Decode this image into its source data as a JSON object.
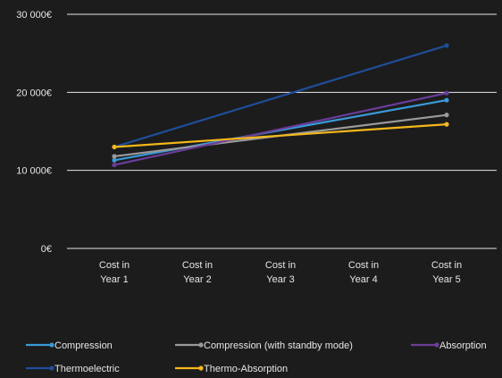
{
  "chart_data": {
    "type": "line",
    "categories": [
      [
        "Cost in",
        "Year 1"
      ],
      [
        "Cost in",
        "Year 2"
      ],
      [
        "Cost in",
        "Year 3"
      ],
      [
        "Cost in",
        "Year 4"
      ],
      [
        "Cost in",
        "Year 5"
      ]
    ],
    "y_ticks": [
      0,
      10000,
      20000,
      30000
    ],
    "y_tick_labels": [
      "0€",
      "10 000€",
      "20 000€",
      "30 000€"
    ],
    "ylim": [
      0,
      30000
    ],
    "grid": "horizontal",
    "legend_placement": "bottom",
    "series": [
      {
        "name": "Compression",
        "color": "#3a9ad9",
        "points": [
          [
            1,
            11300
          ],
          [
            5,
            19000
          ]
        ]
      },
      {
        "name": "Compression (with standby mode)",
        "color": "#9a9a9a",
        "points": [
          [
            1,
            11800
          ],
          [
            5,
            17100
          ]
        ]
      },
      {
        "name": "Absorption",
        "color": "#6a3d9a",
        "points": [
          [
            1,
            10700
          ],
          [
            5,
            19900
          ]
        ]
      },
      {
        "name": "Thermoelectric",
        "color": "#1f4e9a",
        "points": [
          [
            1,
            13000
          ],
          [
            5,
            26000
          ]
        ]
      },
      {
        "name": "Thermo-Absorption",
        "color": "#f4b81a",
        "points": [
          [
            1,
            13000
          ],
          [
            5,
            15900
          ]
        ]
      }
    ]
  }
}
